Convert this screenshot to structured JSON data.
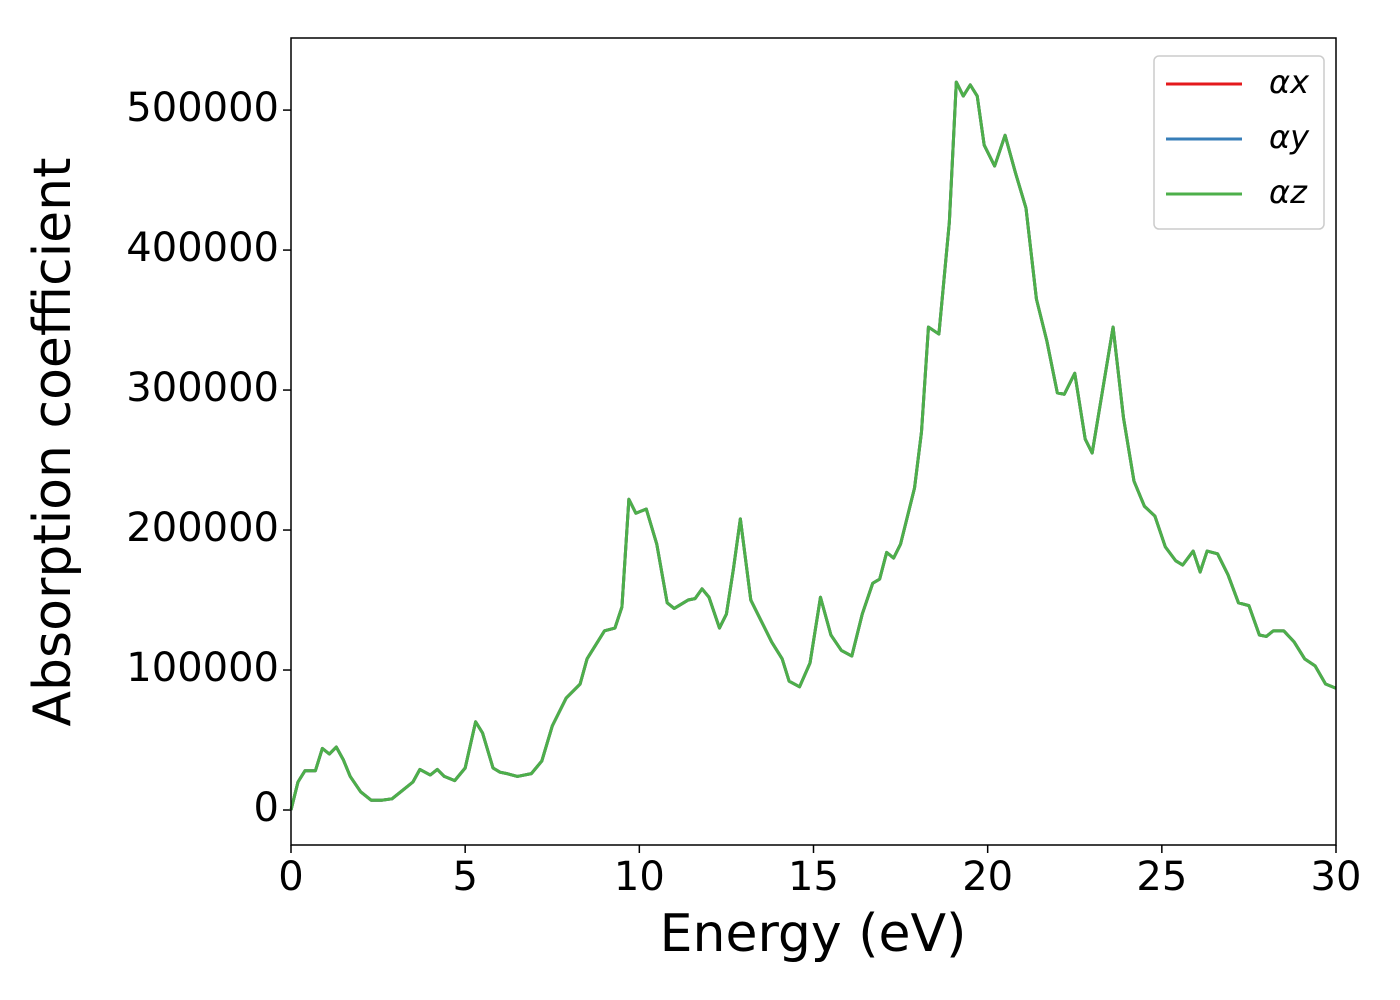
{
  "chart_data": {
    "type": "line",
    "xlabel": "Energy (eV)",
    "ylabel": "Absorption coefficient",
    "x": [
      0,
      0.2,
      0.4,
      0.7,
      0.9,
      1.1,
      1.3,
      1.5,
      1.7,
      2.0,
      2.3,
      2.6,
      2.9,
      3.2,
      3.5,
      3.7,
      4.0,
      4.2,
      4.4,
      4.7,
      5.0,
      5.3,
      5.5,
      5.8,
      6.0,
      6.2,
      6.5,
      6.9,
      7.2,
      7.5,
      7.9,
      8.3,
      8.5,
      9.0,
      9.3,
      9.5,
      9.7,
      9.9,
      10.2,
      10.5,
      10.8,
      11.0,
      11.4,
      11.6,
      11.8,
      12.0,
      12.3,
      12.5,
      12.7,
      12.9,
      13.2,
      13.5,
      13.8,
      14.1,
      14.3,
      14.6,
      14.9,
      15.2,
      15.5,
      15.8,
      16.1,
      16.4,
      16.7,
      16.9,
      17.1,
      17.3,
      17.5,
      17.9,
      18.1,
      18.3,
      18.6,
      18.9,
      19.1,
      19.3,
      19.5,
      19.7,
      19.9,
      20.2,
      20.5,
      20.8,
      21.1,
      21.4,
      21.7,
      22.0,
      22.2,
      22.5,
      22.8,
      23.0,
      23.3,
      23.6,
      23.9,
      24.2,
      24.5,
      24.8,
      25.1,
      25.4,
      25.6,
      25.9,
      26.1,
      26.3,
      26.6,
      26.9,
      27.2,
      27.5,
      27.8,
      28.0,
      28.2,
      28.5,
      28.8,
      29.1,
      29.4,
      29.7,
      30.0
    ],
    "series": [
      {
        "name": "αx",
        "color": "#e41a1c",
        "values": [
          0,
          20000,
          28000,
          28000,
          44000,
          40000,
          45000,
          36000,
          24000,
          13000,
          7000,
          7000,
          8000,
          14000,
          20000,
          29000,
          25000,
          29000,
          24000,
          21000,
          30000,
          63000,
          55000,
          30000,
          27000,
          26000,
          24000,
          26000,
          35000,
          60000,
          80000,
          90000,
          108000,
          128000,
          130000,
          145000,
          222000,
          212000,
          215000,
          190000,
          148000,
          144000,
          150000,
          151000,
          158000,
          152000,
          130000,
          140000,
          172000,
          208000,
          150000,
          135000,
          120000,
          108000,
          92000,
          88000,
          105000,
          152000,
          125000,
          114000,
          110000,
          140000,
          162000,
          165000,
          184000,
          180000,
          190000,
          230000,
          270000,
          345000,
          340000,
          420000,
          520000,
          510000,
          518000,
          510000,
          475000,
          460000,
          482000,
          455000,
          430000,
          365000,
          335000,
          298000,
          297000,
          312000,
          265000,
          255000,
          300000,
          345000,
          280000,
          235000,
          217000,
          210000,
          188000,
          178000,
          175000,
          185000,
          170000,
          185000,
          183000,
          168000,
          148000,
          146000,
          125000,
          124000,
          128000,
          128000,
          120000,
          108000,
          103000,
          90000,
          87000
        ]
      },
      {
        "name": "αy",
        "color": "#377eb8",
        "values": [
          0,
          20000,
          28000,
          28000,
          44000,
          40000,
          45000,
          36000,
          24000,
          13000,
          7000,
          7000,
          8000,
          14000,
          20000,
          29000,
          25000,
          29000,
          24000,
          21000,
          30000,
          63000,
          55000,
          30000,
          27000,
          26000,
          24000,
          26000,
          35000,
          60000,
          80000,
          90000,
          108000,
          128000,
          130000,
          145000,
          222000,
          212000,
          215000,
          190000,
          148000,
          144000,
          150000,
          151000,
          158000,
          152000,
          130000,
          140000,
          172000,
          208000,
          150000,
          135000,
          120000,
          108000,
          92000,
          88000,
          105000,
          152000,
          125000,
          114000,
          110000,
          140000,
          162000,
          165000,
          184000,
          180000,
          190000,
          230000,
          270000,
          345000,
          340000,
          420000,
          520000,
          510000,
          518000,
          510000,
          475000,
          460000,
          482000,
          455000,
          430000,
          365000,
          335000,
          298000,
          297000,
          312000,
          265000,
          255000,
          300000,
          345000,
          280000,
          235000,
          217000,
          210000,
          188000,
          178000,
          175000,
          185000,
          170000,
          185000,
          183000,
          168000,
          148000,
          146000,
          125000,
          124000,
          128000,
          128000,
          120000,
          108000,
          103000,
          90000,
          87000
        ]
      },
      {
        "name": "αz",
        "color": "#4daf4a",
        "values": [
          0,
          20000,
          28000,
          28000,
          44000,
          40000,
          45000,
          36000,
          24000,
          13000,
          7000,
          7000,
          8000,
          14000,
          20000,
          29000,
          25000,
          29000,
          24000,
          21000,
          30000,
          63000,
          55000,
          30000,
          27000,
          26000,
          24000,
          26000,
          35000,
          60000,
          80000,
          90000,
          108000,
          128000,
          130000,
          145000,
          222000,
          212000,
          215000,
          190000,
          148000,
          144000,
          150000,
          151000,
          158000,
          152000,
          130000,
          140000,
          172000,
          208000,
          150000,
          135000,
          120000,
          108000,
          92000,
          88000,
          105000,
          152000,
          125000,
          114000,
          110000,
          140000,
          162000,
          165000,
          184000,
          180000,
          190000,
          230000,
          270000,
          345000,
          340000,
          420000,
          520000,
          510000,
          518000,
          510000,
          475000,
          460000,
          482000,
          455000,
          430000,
          365000,
          335000,
          298000,
          297000,
          312000,
          265000,
          255000,
          300000,
          345000,
          280000,
          235000,
          217000,
          210000,
          188000,
          178000,
          175000,
          185000,
          170000,
          185000,
          183000,
          168000,
          148000,
          146000,
          125000,
          124000,
          128000,
          128000,
          120000,
          108000,
          103000,
          90000,
          87000
        ]
      }
    ],
    "xlim": [
      0,
      30
    ],
    "xticks": [
      0,
      5,
      10,
      15,
      20,
      25,
      30
    ],
    "ylim": [
      -25000,
      551500
    ],
    "yticks": [
      0,
      100000,
      200000,
      300000,
      400000,
      500000
    ],
    "legend": "upper right"
  }
}
